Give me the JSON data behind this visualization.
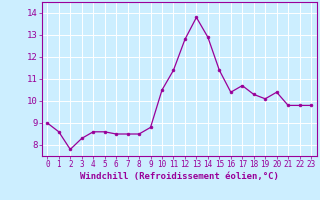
{
  "x": [
    0,
    1,
    2,
    3,
    4,
    5,
    6,
    7,
    8,
    9,
    10,
    11,
    12,
    13,
    14,
    15,
    16,
    17,
    18,
    19,
    20,
    21,
    22,
    23
  ],
  "y": [
    9.0,
    8.6,
    7.8,
    8.3,
    8.6,
    8.6,
    8.5,
    8.5,
    8.5,
    8.8,
    10.5,
    11.4,
    12.8,
    13.8,
    12.9,
    11.4,
    10.4,
    10.7,
    10.3,
    10.1,
    10.4,
    9.8,
    9.8,
    9.8
  ],
  "line_color": "#990099",
  "marker": "o",
  "marker_size": 2.0,
  "background_color": "#cceeff",
  "grid_color": "#ffffff",
  "xlabel": "Windchill (Refroidissement éolien,°C)",
  "ylabel": "",
  "ylim": [
    7.5,
    14.5
  ],
  "xlim": [
    -0.5,
    23.5
  ],
  "yticks": [
    8,
    9,
    10,
    11,
    12,
    13,
    14
  ],
  "xticks": [
    0,
    1,
    2,
    3,
    4,
    5,
    6,
    7,
    8,
    9,
    10,
    11,
    12,
    13,
    14,
    15,
    16,
    17,
    18,
    19,
    20,
    21,
    22,
    23
  ],
  "tick_color": "#990099",
  "label_color": "#990099",
  "spine_color": "#990099",
  "xlabel_fontsize": 6.5,
  "ytick_fontsize": 6.5,
  "xtick_fontsize": 5.5,
  "linewidth": 0.9
}
